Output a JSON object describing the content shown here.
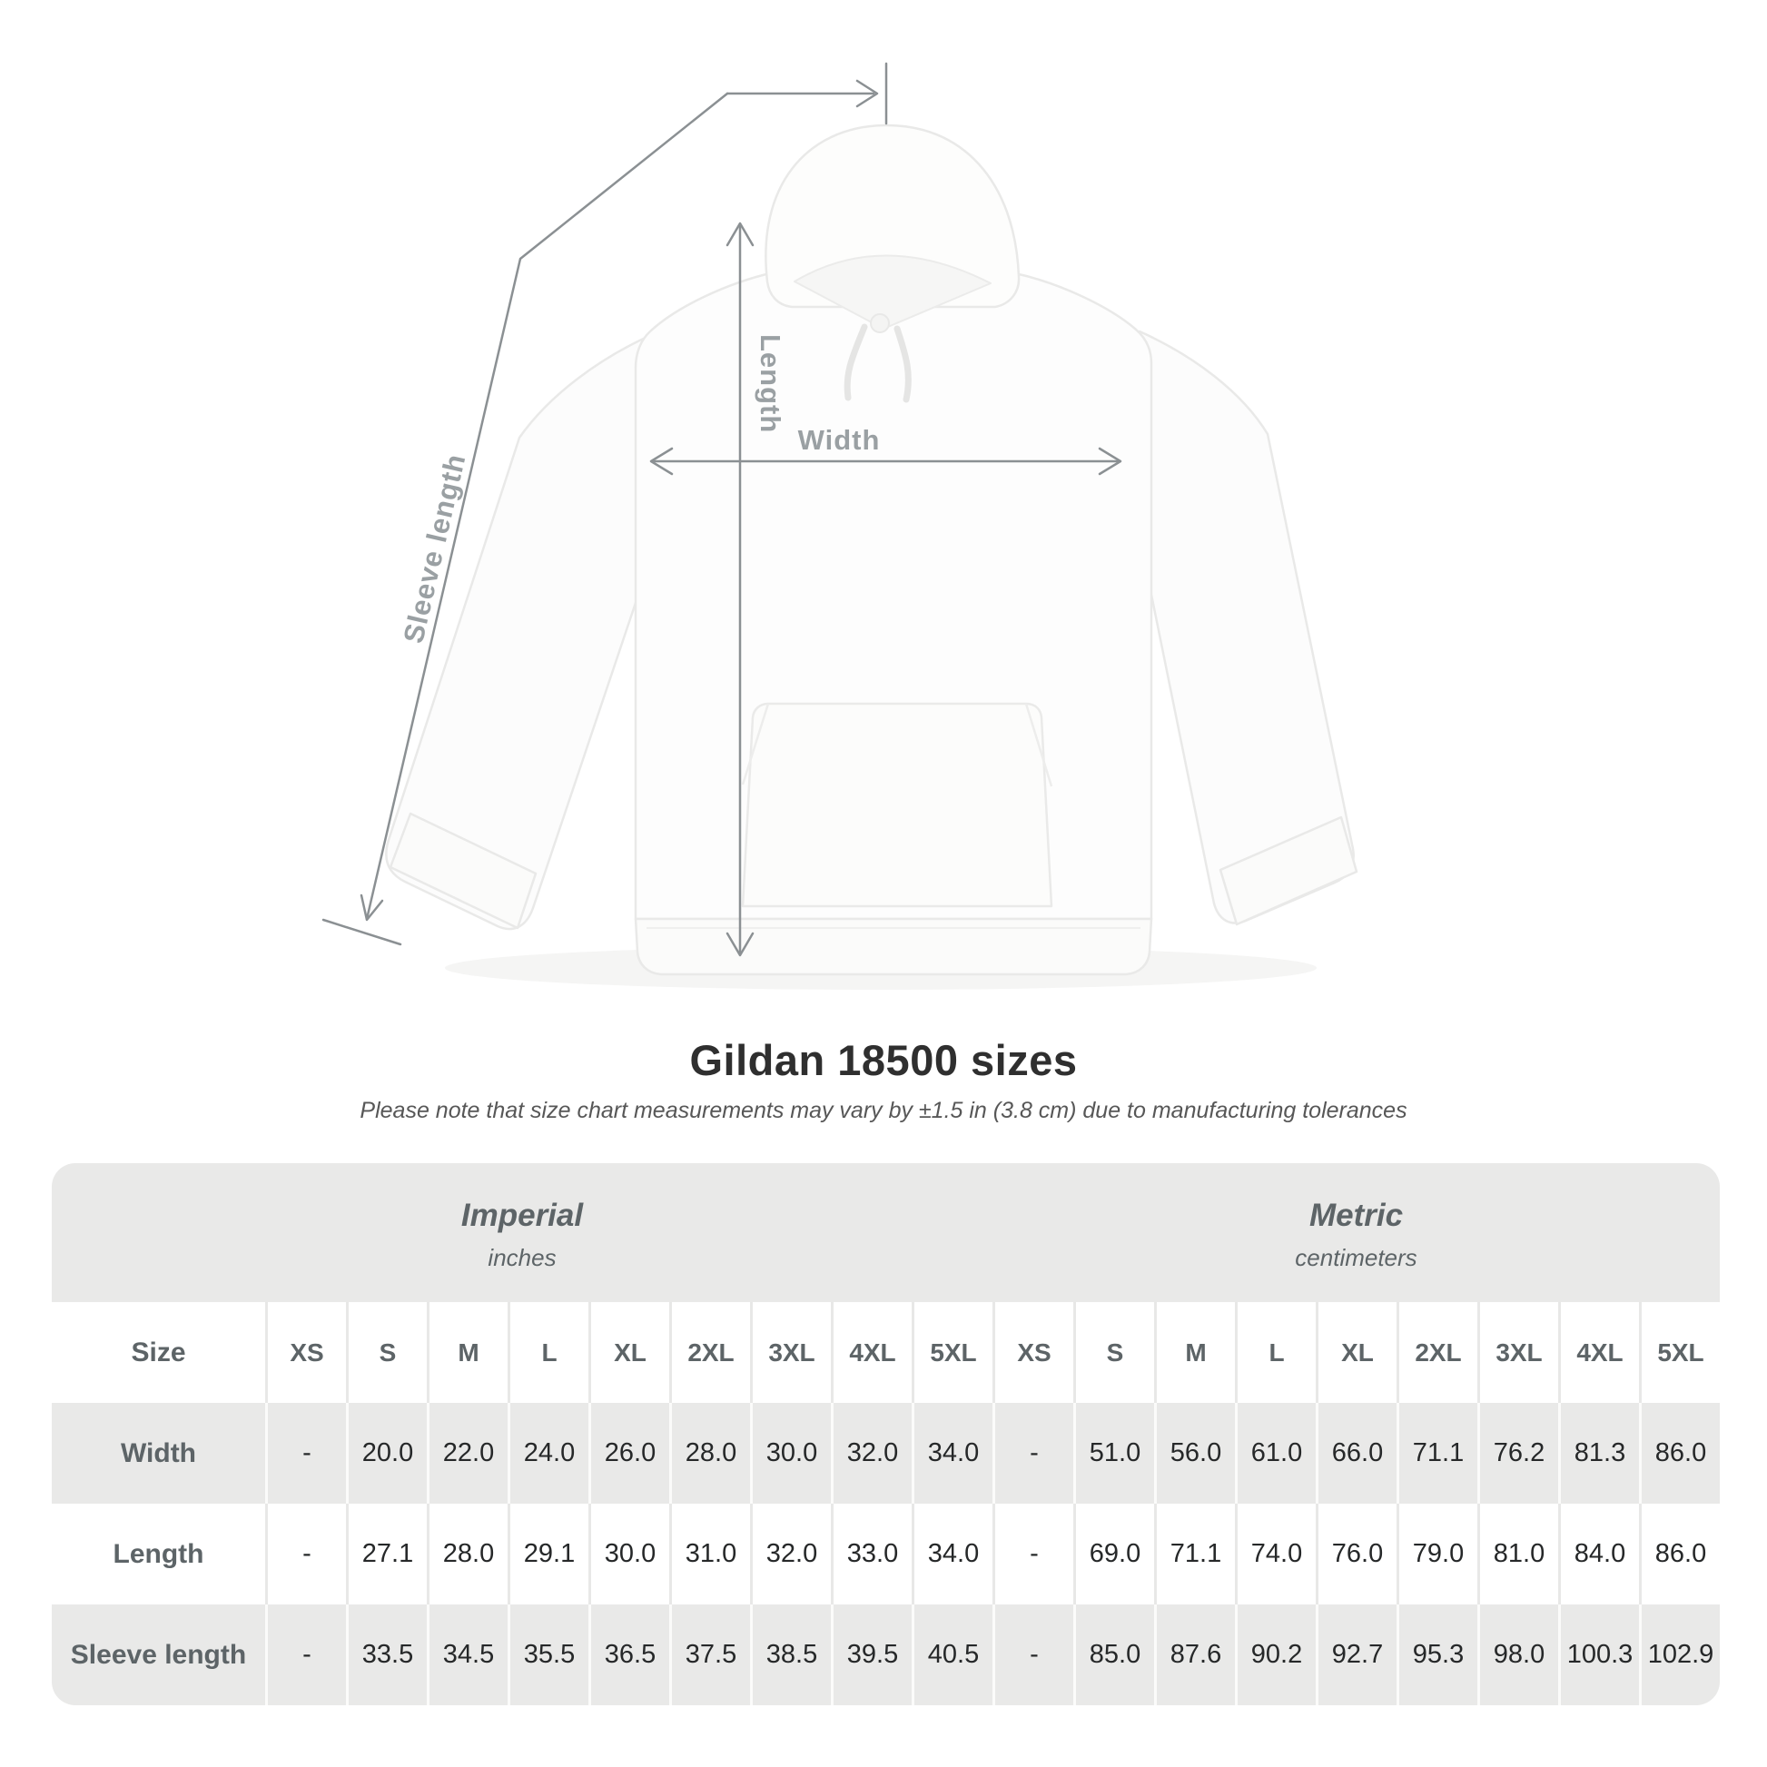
{
  "title": "Gildan 18500 sizes",
  "subtitle": "Please note that size chart measurements may vary by ±1.5 in (3.8 cm) due to manufacturing tolerances",
  "diagram": {
    "product": "white pullover hoodie flat-lay photo",
    "labels": {
      "length": "Length",
      "width": "Width",
      "sleeve": "Sleeve length"
    }
  },
  "table": {
    "size_label": "Size",
    "unit_groups": [
      {
        "name": "Imperial",
        "unit": "inches"
      },
      {
        "name": "Metric",
        "unit": "centimeters"
      }
    ],
    "sizes": [
      "XS",
      "S",
      "M",
      "L",
      "XL",
      "2XL",
      "3XL",
      "4XL",
      "5XL"
    ],
    "rows": [
      {
        "label": "Width",
        "imperial": [
          "-",
          "20.0",
          "22.0",
          "24.0",
          "26.0",
          "28.0",
          "30.0",
          "32.0",
          "34.0"
        ],
        "metric": [
          "-",
          "51.0",
          "56.0",
          "61.0",
          "66.0",
          "71.1",
          "76.2",
          "81.3",
          "86.0"
        ]
      },
      {
        "label": "Length",
        "imperial": [
          "-",
          "27.1",
          "28.0",
          "29.1",
          "30.0",
          "31.0",
          "32.0",
          "33.0",
          "34.0"
        ],
        "metric": [
          "-",
          "69.0",
          "71.1",
          "74.0",
          "76.0",
          "79.0",
          "81.0",
          "84.0",
          "86.0"
        ]
      },
      {
        "label": "Sleeve length",
        "imperial": [
          "-",
          "33.5",
          "34.5",
          "35.5",
          "36.5",
          "37.5",
          "38.5",
          "39.5",
          "40.5"
        ],
        "metric": [
          "-",
          "85.0",
          "87.6",
          "90.2",
          "92.7",
          "95.3",
          "98.0",
          "100.3",
          "102.9"
        ]
      }
    ]
  },
  "colors": {
    "row_gray": "#e9e9e8",
    "label_text": "#5d6467",
    "value_text": "#262829",
    "title_text": "#2f2f2f",
    "subtitle_text": "#575757",
    "dimension_line": "#8b9093",
    "dimension_label": "#9aa0a3"
  }
}
